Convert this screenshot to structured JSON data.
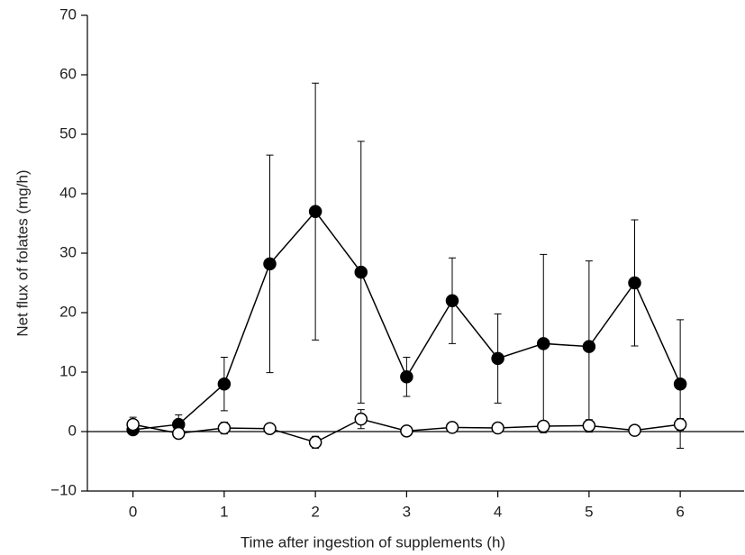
{
  "chart_data": {
    "type": "line",
    "xlabel": "Time after ingestion of supplements (h)",
    "ylabel": "Net flux of folates (mg/h)",
    "x": [
      0,
      0.5,
      1,
      1.5,
      2,
      2.5,
      3,
      3.5,
      4,
      4.5,
      5,
      5.5,
      6
    ],
    "series": [
      {
        "color": "#000000",
        "values": [
          0.3,
          1.2,
          8,
          28.2,
          37,
          26.8,
          9.2,
          22,
          12.3,
          14.8,
          14.3,
          25,
          8
        ],
        "errors": [
          0.2,
          1.6,
          4.5,
          18.3,
          21.6,
          22,
          3.3,
          7.2,
          7.5,
          15,
          14.4,
          10.6,
          10.8
        ]
      },
      {
        "color": "#ffffff",
        "values": [
          1.2,
          -0.3,
          0.6,
          0.5,
          -1.8,
          2.1,
          0.1,
          0.7,
          0.6,
          0.9,
          1,
          0.2,
          1.2
        ],
        "errors": [
          1.2,
          0.3,
          1,
          0.3,
          1,
          1.6,
          0.6,
          0.3,
          0.3,
          0.6,
          1,
          0.2,
          1
        ]
      }
    ],
    "xlim": [
      -0.5,
      6.7
    ],
    "xticks": [
      0,
      1,
      2,
      3,
      4,
      5,
      6
    ],
    "ylim": [
      -10,
      70
    ],
    "yticks": [
      {
        "value": -10,
        "label": "−10"
      },
      0,
      10,
      20,
      30,
      40,
      50,
      60,
      70
    ],
    "reference_line": 0
  }
}
